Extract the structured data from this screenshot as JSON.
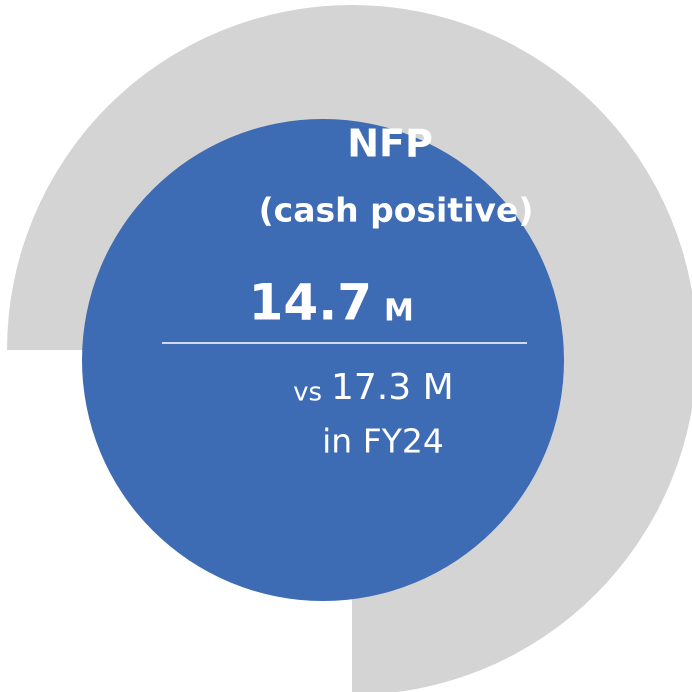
{
  "title": "NFP",
  "subtitle": "(cash positive)",
  "value": "14.7",
  "unit": "M",
  "comparison": {
    "prefix": "vs",
    "value": "17.3 M",
    "period": "in FY24"
  }
}
